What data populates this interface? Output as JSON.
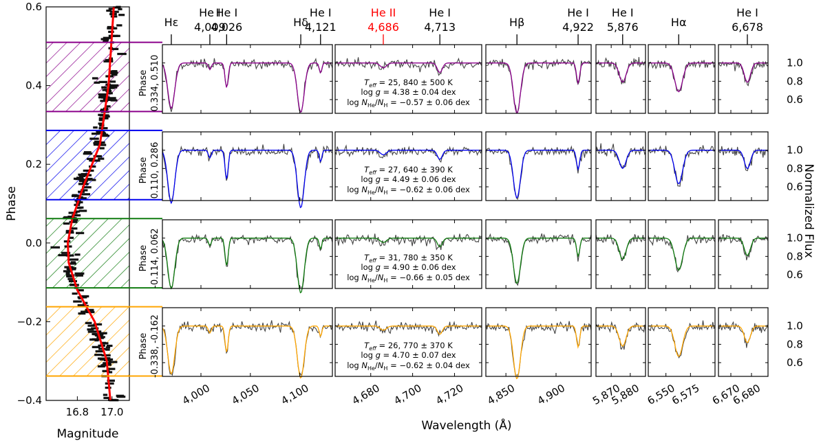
{
  "chart_data": {
    "type": "line",
    "ylabel_left": "Phase",
    "xlabel_left": "Magnitude",
    "xlabel_center": "Wavelength (Å)",
    "ylabel_right": "Normalized Flux",
    "light_curve": {
      "ylim": [
        -0.4,
        0.6
      ],
      "yticks": [
        "0.6",
        "0.4",
        "0.2",
        "0.0",
        "−0.2",
        "−0.4"
      ],
      "xlim": [
        16.62,
        17.1
      ],
      "xticks": [
        "16.8",
        "17.0"
      ],
      "model_curve": [
        {
          "phase": -0.4,
          "mag": 16.99
        },
        {
          "phase": -0.3,
          "mag": 16.97
        },
        {
          "phase": -0.2,
          "mag": 16.9
        },
        {
          "phase": -0.12,
          "mag": 16.8
        },
        {
          "phase": -0.05,
          "mag": 16.75
        },
        {
          "phase": 0.0,
          "mag": 16.745
        },
        {
          "phase": 0.06,
          "mag": 16.77
        },
        {
          "phase": 0.15,
          "mag": 16.84
        },
        {
          "phase": 0.25,
          "mag": 16.93
        },
        {
          "phase": 0.4,
          "mag": 16.98
        },
        {
          "phase": 0.6,
          "mag": 17.01
        }
      ]
    },
    "flux_axis": {
      "ylim": [
        0.45,
        1.2
      ],
      "yticks": [
        "1.0",
        "0.8",
        "0.6"
      ]
    },
    "panels": [
      {
        "xlim": [
          3961,
          4133
        ],
        "xticks": [
          "4,000",
          "4,050",
          "4,100"
        ]
      },
      {
        "xlim": [
          4663,
          4733
        ],
        "xticks": [
          "4,680",
          "4,700",
          "4,720"
        ]
      },
      {
        "xlim": [
          4830,
          4935
        ],
        "xticks": [
          "4,850",
          "4,900"
        ]
      },
      {
        "xlim": [
          5862,
          5888
        ],
        "xticks": [
          "5,870",
          "5,880"
        ]
      },
      {
        "xlim": [
          6532,
          6600
        ],
        "xticks": [
          "6,550",
          "6,575"
        ]
      },
      {
        "xlim": [
          6664,
          6688
        ],
        "xticks": [
          "6,670",
          "6,680"
        ]
      }
    ],
    "line_markers": [
      {
        "label": "Hε",
        "sub": "",
        "panel": 0,
        "wl": 3970,
        "color": "#000000"
      },
      {
        "label": "He I",
        "sub": "4,009",
        "panel": 0,
        "wl": 4009,
        "color": "#000000"
      },
      {
        "label": "He I",
        "sub": "4,026",
        "panel": 0,
        "wl": 4026,
        "color": "#000000"
      },
      {
        "label": "Hδ",
        "sub": "",
        "panel": 0,
        "wl": 4101,
        "color": "#000000"
      },
      {
        "label": "He I",
        "sub": "4,121",
        "panel": 0,
        "wl": 4121,
        "color": "#000000"
      },
      {
        "label": "He II",
        "sub": "4,686",
        "panel": 1,
        "wl": 4686,
        "color": "#ff0000"
      },
      {
        "label": "He I",
        "sub": "4,713",
        "panel": 1,
        "wl": 4713,
        "color": "#000000"
      },
      {
        "label": "Hβ",
        "sub": "",
        "panel": 2,
        "wl": 4861,
        "color": "#000000"
      },
      {
        "label": "He I",
        "sub": "4,922",
        "panel": 2,
        "wl": 4922,
        "color": "#000000"
      },
      {
        "label": "He I",
        "sub": "5,876",
        "panel": 3,
        "wl": 5876,
        "color": "#000000"
      },
      {
        "label": "Hα",
        "sub": "",
        "panel": 4,
        "wl": 6563,
        "color": "#000000"
      },
      {
        "label": "He I",
        "sub": "6,678",
        "panel": 5,
        "wl": 6678,
        "color": "#000000"
      }
    ],
    "phases": [
      {
        "label_top": "Phase",
        "label_range": "0.334, 0.510",
        "phase_range": [
          0.334,
          0.51
        ],
        "color": "#8b008b",
        "teff": "25, 840 ± 500 K",
        "logg": "4.38 ± 0.04 dex",
        "nhe": "−0.57 ± 0.06 dex"
      },
      {
        "label_top": "Phase",
        "label_range": "0.110, 0.286",
        "phase_range": [
          0.11,
          0.286
        ],
        "color": "#0000ee",
        "teff": "27, 640 ± 390 K",
        "logg": "4.49 ± 0.06 dex",
        "nhe": "−0.62 ± 0.06 dex"
      },
      {
        "label_top": "Phase",
        "label_range": "-0.114, 0.062",
        "phase_range": [
          -0.114,
          0.062
        ],
        "color": "#107c10",
        "teff": "31, 780 ± 350 K",
        "logg": "4.90 ± 0.06 dex",
        "nhe": "−0.66 ± 0.05 dex"
      },
      {
        "label_top": "Phase",
        "label_range": "-0.338, -0.162",
        "phase_range": [
          -0.338,
          -0.162
        ],
        "color": "#ffa500",
        "teff": "26, 770 ± 370 K",
        "logg": "4.70 ± 0.07 dex",
        "nhe": "−0.62 ± 0.04 dex"
      }
    ],
    "absorption_lines": [
      {
        "panel": 0,
        "wl": 3970,
        "depth": 0.55,
        "width": 3.5
      },
      {
        "panel": 0,
        "wl": 4009,
        "depth": 0.08,
        "width": 1.5
      },
      {
        "panel": 0,
        "wl": 4026,
        "depth": 0.3,
        "width": 1.6
      },
      {
        "panel": 0,
        "wl": 4101,
        "depth": 0.6,
        "width": 3.5
      },
      {
        "panel": 0,
        "wl": 4121,
        "depth": 0.12,
        "width": 1.3
      },
      {
        "panel": 1,
        "wl": 4686,
        "depth": 0.05,
        "width": 1.5
      },
      {
        "panel": 1,
        "wl": 4713,
        "depth": 0.1,
        "width": 1.2
      },
      {
        "panel": 2,
        "wl": 4861,
        "depth": 0.55,
        "width": 3.5
      },
      {
        "panel": 2,
        "wl": 4922,
        "depth": 0.22,
        "width": 1.6
      },
      {
        "panel": 3,
        "wl": 5876,
        "depth": 0.22,
        "width": 1.8
      },
      {
        "panel": 4,
        "wl": 6563,
        "depth": 0.35,
        "width": 4.0
      },
      {
        "panel": 5,
        "wl": 6678,
        "depth": 0.2,
        "width": 1.5
      }
    ]
  }
}
